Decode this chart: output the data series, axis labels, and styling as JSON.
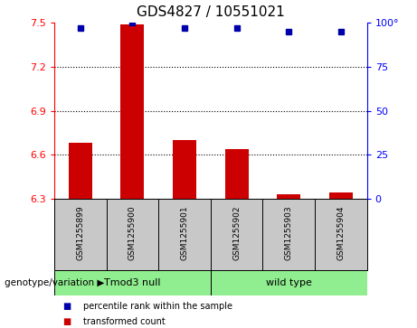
{
  "title": "GDS4827 / 10551021",
  "samples": [
    "GSM1255899",
    "GSM1255900",
    "GSM1255901",
    "GSM1255902",
    "GSM1255903",
    "GSM1255904"
  ],
  "transformed_counts": [
    6.68,
    7.49,
    6.7,
    6.64,
    6.33,
    6.34
  ],
  "percentile_ranks": [
    97,
    100,
    97,
    97,
    95,
    95
  ],
  "ylim_left": [
    6.3,
    7.5
  ],
  "yticks_left": [
    6.3,
    6.6,
    6.9,
    7.2,
    7.5
  ],
  "ylim_right": [
    0,
    100
  ],
  "yticks_right": [
    0,
    25,
    50,
    75,
    100
  ],
  "hlines": [
    6.6,
    6.9,
    7.2
  ],
  "groups": [
    {
      "label": "Tmod3 null",
      "indices": [
        0,
        1,
        2
      ],
      "color": "#90EE90"
    },
    {
      "label": "wild type",
      "indices": [
        3,
        4,
        5
      ],
      "color": "#90EE90"
    }
  ],
  "group_label_prefix": "genotype/variation",
  "bar_color": "#CC0000",
  "dot_color": "#0000AA",
  "bar_width": 0.45,
  "background_color": "#ffffff",
  "label_bg_color": "#C8C8C8",
  "legend_items": [
    {
      "color": "#CC0000",
      "label": "transformed count"
    },
    {
      "color": "#0000AA",
      "label": "percentile rank within the sample"
    }
  ]
}
